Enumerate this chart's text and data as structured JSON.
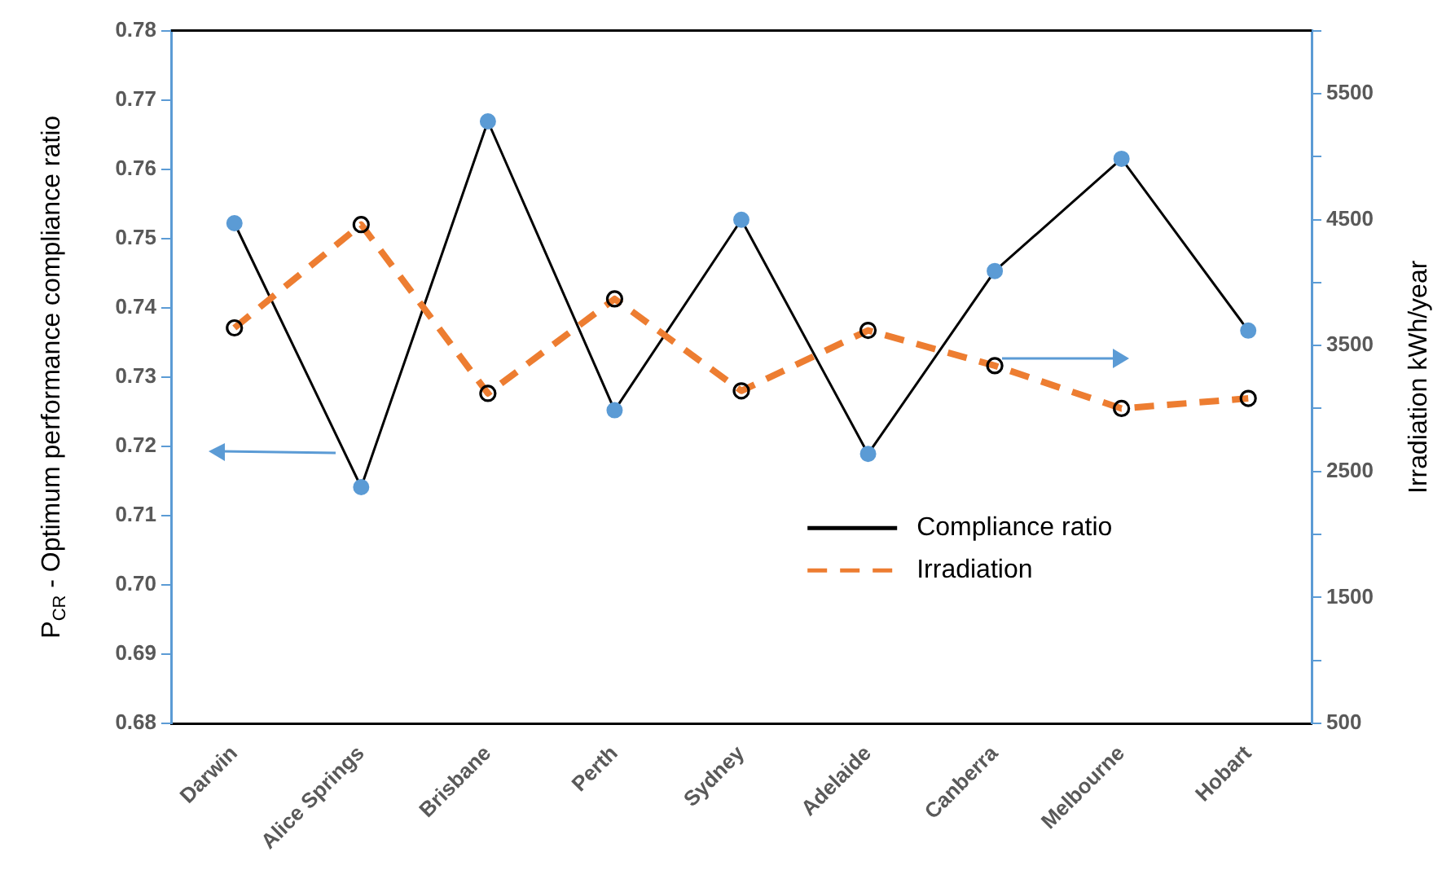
{
  "chart_data": {
    "type": "line",
    "ylabel": "P$_{CR}$ - Optimum performance compliance ratio",
    "y2label": "Irradiation kWh/year",
    "categories": [
      "Darwin",
      "Alice Springs",
      "Brisbane",
      "Perth",
      "Sydney",
      "Adelaide",
      "Canberra",
      "Melbourne",
      "Hobart"
    ],
    "series": [
      {
        "name": "Compliance ratio",
        "color": "#000000",
        "line_style": "solid",
        "marker": "circle",
        "values": [
          0.7522,
          0.7141,
          0.7669,
          0.7252,
          0.7527,
          0.7189,
          0.7453,
          0.7615,
          0.7367
        ]
      },
      {
        "name": "Irradiation",
        "color": "#ed7d31",
        "line_style": "dashed",
        "marker": "circle",
        "axis": "y2",
        "values": [
          3640,
          4460,
          3120,
          3870,
          3140,
          3620,
          3340,
          3000,
          3080
        ]
      }
    ],
    "ylim": [
      0.68,
      0.78
    ],
    "yticks": [
      0.68,
      0.69,
      {
        "value": 0.7,
        "label": "0.70"
      },
      0.71,
      0.72,
      0.73,
      0.74,
      0.75,
      0.76,
      0.77,
      0.78
    ],
    "y2lim": [
      500,
      6000
    ],
    "y2ticks": [
      500,
      {
        "value": 1000,
        "label": null
      },
      1500,
      {
        "value": 2000,
        "label": null
      },
      2500,
      {
        "value": 3000,
        "label": null
      },
      3500,
      {
        "value": 4000,
        "label": null
      },
      4500,
      {
        "value": 5000,
        "label": null
      },
      5500,
      {
        "value": 6000,
        "label": null
      }
    ],
    "grid": false,
    "legend": "bottom right"
  }
}
